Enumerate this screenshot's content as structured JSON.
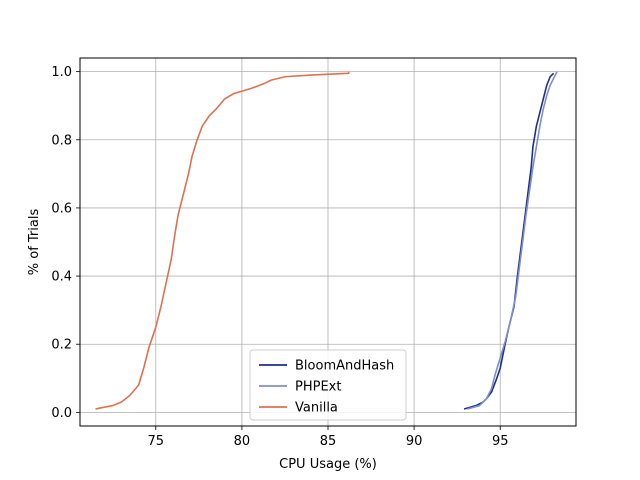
{
  "chart_data": {
    "type": "line",
    "title": "",
    "xlabel": "CPU Usage (%)",
    "ylabel": "% of Trials",
    "xlim": [
      70.6,
      99.4
    ],
    "ylim": [
      -0.04,
      1.04
    ],
    "xticks": [
      75,
      80,
      85,
      90,
      95
    ],
    "yticks": [
      0.0,
      0.2,
      0.4,
      0.6,
      0.8,
      1.0
    ],
    "xtick_labels": [
      "75",
      "80",
      "85",
      "90",
      "95"
    ],
    "ytick_labels": [
      "0.0",
      "0.2",
      "0.4",
      "0.6",
      "0.8",
      "1.0"
    ],
    "grid": true,
    "legend_position": "lower-center",
    "series": [
      {
        "name": "BloomAndHash",
        "color": "#1f2f8a",
        "x": [
          92.9,
          93.6,
          94.0,
          94.2,
          94.5,
          94.8,
          95.0,
          95.2,
          95.5,
          95.8,
          96.0,
          96.2,
          96.4,
          96.6,
          96.8,
          96.9,
          97.1,
          97.3,
          97.5,
          97.7,
          97.9,
          98.1
        ],
        "y": [
          0.01,
          0.02,
          0.03,
          0.04,
          0.06,
          0.1,
          0.13,
          0.18,
          0.25,
          0.31,
          0.4,
          0.48,
          0.56,
          0.64,
          0.72,
          0.78,
          0.84,
          0.88,
          0.92,
          0.96,
          0.985,
          0.995
        ]
      },
      {
        "name": "PHPExt",
        "color": "#7f8fc8",
        "x": [
          93.1,
          93.8,
          94.2,
          94.5,
          94.7,
          95.0,
          95.3,
          95.6,
          95.9,
          96.1,
          96.3,
          96.5,
          96.7,
          96.9,
          97.1,
          97.3,
          97.5,
          97.7,
          97.9,
          98.1,
          98.3
        ],
        "y": [
          0.01,
          0.02,
          0.04,
          0.07,
          0.11,
          0.16,
          0.21,
          0.27,
          0.34,
          0.42,
          0.5,
          0.58,
          0.65,
          0.72,
          0.78,
          0.84,
          0.89,
          0.93,
          0.96,
          0.98,
          1.0
        ]
      },
      {
        "name": "Vanilla",
        "color": "#e0704f",
        "x": [
          71.5,
          72.5,
          73.0,
          73.5,
          74.0,
          74.3,
          74.6,
          75.0,
          75.3,
          75.6,
          75.9,
          76.1,
          76.3,
          76.6,
          76.9,
          77.1,
          77.4,
          77.7,
          78.1,
          78.5,
          79.0,
          79.5,
          80.5,
          81.3,
          81.7,
          82.5,
          84.0,
          86.2,
          86.2
        ],
        "y": [
          0.01,
          0.02,
          0.03,
          0.05,
          0.08,
          0.13,
          0.19,
          0.25,
          0.31,
          0.38,
          0.45,
          0.52,
          0.58,
          0.64,
          0.7,
          0.75,
          0.8,
          0.84,
          0.87,
          0.89,
          0.92,
          0.935,
          0.95,
          0.965,
          0.975,
          0.985,
          0.99,
          0.995,
          1.0
        ]
      }
    ]
  }
}
